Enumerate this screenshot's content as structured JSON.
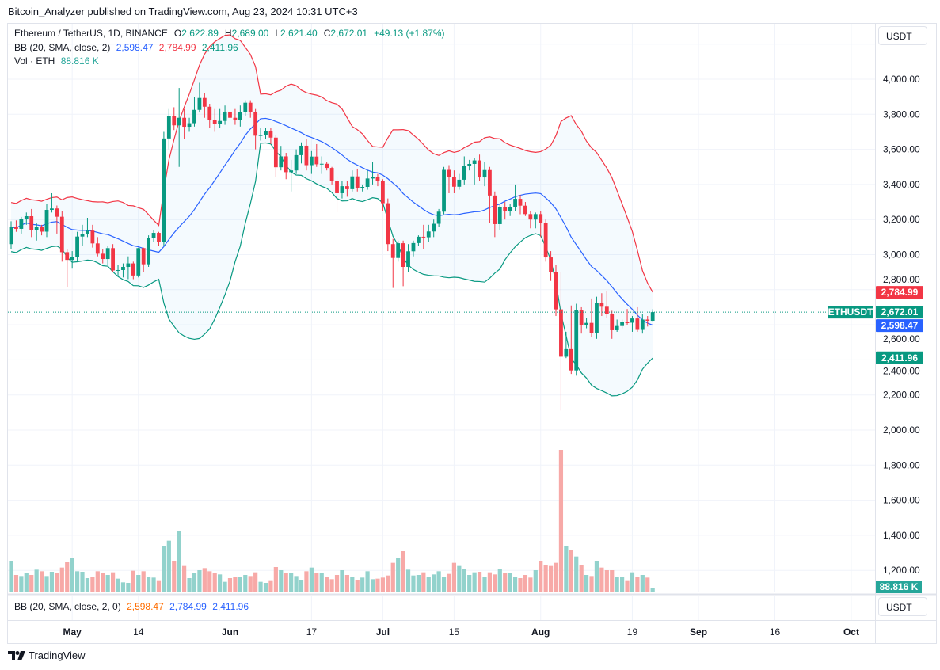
{
  "publisher_line": "Bitcoin_Analyzer published on TradingView.com, Aug 23, 2024 10:31 UTC+3",
  "legend": {
    "symbol": "Ethereum / TetherUS, 1D, BINANCE",
    "o_label": "O",
    "o": "2,622.89",
    "h_label": "H",
    "h": "2,689.00",
    "l_label": "L",
    "l": "2,621.40",
    "c_label": "C",
    "c": "2,672.01",
    "change": "+49.13 (+1.87%)",
    "bb_label": "BB (20, SMA, close, 2)",
    "bb_basis": "2,598.47",
    "bb_upper": "2,784.99",
    "bb_lower": "2,411.96",
    "vol_label": "Vol · ETH",
    "vol": "88.816 K"
  },
  "lower_pane": {
    "label": "BB (20, SMA, close, 2, 0)",
    "v1": "2,598.47",
    "v2": "2,784.99",
    "v3": "2,411.96",
    "unit_button": "USDT"
  },
  "price_axis": {
    "unit_button": "USDT",
    "ticks": [
      "1,200.00",
      "1,400.00",
      "1,600.00",
      "1,800.00",
      "2,000.00",
      "2,200.00",
      "2,400.00",
      "2,600.00",
      "2,800.00",
      "3,000.00",
      "3,200.00",
      "3,400.00",
      "3,600.00",
      "3,800.00",
      "4,000.00"
    ],
    "labels": {
      "upper": "2,784.99",
      "symbol": "ETHUSDT",
      "last": "2,672.01",
      "basis": "2,598.47",
      "lower": "2,411.96",
      "volume": "88.816 K"
    }
  },
  "colors": {
    "up": "#089981",
    "down": "#f23645",
    "basis": "#2962ff",
    "upper": "#f23645",
    "lower": "#089981",
    "vol_up": "#92d2cc",
    "vol_down": "#f7a9a7"
  },
  "footer_logo": "TradingView",
  "chart_data": {
    "type": "candlestick",
    "title": "Ethereum / TetherUS, 1D, BINANCE",
    "ylim": [
      1100,
      4150
    ],
    "y_scale": "linear",
    "grid": true,
    "legend_placement": "top-left",
    "indicators": [
      "Bollinger Bands (20, SMA, close, 2)",
      "Volume"
    ],
    "time_ticks": [
      {
        "label": "May",
        "date": "2024-05-01",
        "major": true
      },
      {
        "label": "14",
        "date": "2024-05-14",
        "major": false
      },
      {
        "label": "Jun",
        "date": "2024-06-01",
        "major": true
      },
      {
        "label": "17",
        "date": "2024-06-17",
        "major": false
      },
      {
        "label": "Jul",
        "date": "2024-07-01",
        "major": true
      },
      {
        "label": "15",
        "date": "2024-07-15",
        "major": false
      },
      {
        "label": "Aug",
        "date": "2024-08-01",
        "major": true
      },
      {
        "label": "19",
        "date": "2024-08-19",
        "major": false
      },
      {
        "label": "Sep",
        "date": "2024-09-01",
        "major": true
      },
      {
        "label": "16",
        "date": "2024-09-16",
        "major": false
      },
      {
        "label": "Oct",
        "date": "2024-10-01",
        "major": true
      }
    ],
    "columns": [
      "date",
      "open",
      "high",
      "low",
      "close",
      "volume_k"
    ],
    "candles": [
      [
        "2024-04-19",
        3060,
        3190,
        3030,
        3157,
        600
      ],
      [
        "2024-04-20",
        3157,
        3195,
        3130,
        3147,
        330
      ],
      [
        "2024-04-21",
        3147,
        3215,
        3120,
        3201,
        310
      ],
      [
        "2024-04-22",
        3201,
        3240,
        3170,
        3219,
        370
      ],
      [
        "2024-04-23",
        3219,
        3260,
        3100,
        3139,
        330
      ],
      [
        "2024-04-24",
        3139,
        3180,
        3080,
        3156,
        430
      ],
      [
        "2024-04-25",
        3156,
        3170,
        3110,
        3131,
        400
      ],
      [
        "2024-04-26",
        3131,
        3290,
        3100,
        3255,
        310
      ],
      [
        "2024-04-27",
        3255,
        3350,
        3240,
        3263,
        390
      ],
      [
        "2024-04-28",
        3263,
        3280,
        3120,
        3216,
        370
      ],
      [
        "2024-04-29",
        3216,
        3250,
        2960,
        3014,
        470
      ],
      [
        "2024-04-30",
        3014,
        3030,
        2817,
        2970,
        580
      ],
      [
        "2024-05-01",
        2970,
        3020,
        2920,
        2988,
        650
      ],
      [
        "2024-05-02",
        2988,
        3130,
        2960,
        3103,
        400
      ],
      [
        "2024-05-03",
        3103,
        3170,
        3050,
        3117,
        390
      ],
      [
        "2024-05-04",
        3117,
        3210,
        3100,
        3137,
        270
      ],
      [
        "2024-05-05",
        3137,
        3170,
        3040,
        3064,
        290
      ],
      [
        "2024-05-06",
        3064,
        3100,
        2990,
        3005,
        400
      ],
      [
        "2024-05-07",
        3005,
        3030,
        2950,
        2975,
        360
      ],
      [
        "2024-05-08",
        2975,
        3050,
        2940,
        3037,
        330
      ],
      [
        "2024-05-09",
        3037,
        3060,
        2900,
        2910,
        380
      ],
      [
        "2024-05-10",
        2910,
        2940,
        2880,
        2912,
        260
      ],
      [
        "2024-05-11",
        2912,
        2950,
        2870,
        2930,
        190
      ],
      [
        "2024-05-12",
        2930,
        2990,
        2860,
        2950,
        180
      ],
      [
        "2024-05-13",
        2950,
        2960,
        2860,
        2881,
        410
      ],
      [
        "2024-05-14",
        2881,
        3040,
        2870,
        3037,
        330
      ],
      [
        "2024-05-15",
        3037,
        3040,
        2900,
        2945,
        400
      ],
      [
        "2024-05-16",
        2945,
        3110,
        2930,
        3093,
        300
      ],
      [
        "2024-05-17",
        3093,
        3140,
        3070,
        3124,
        280
      ],
      [
        "2024-05-18",
        3124,
        3130,
        3050,
        3071,
        230
      ],
      [
        "2024-05-19",
        3071,
        3700,
        3050,
        3662,
        870
      ],
      [
        "2024-05-20",
        3662,
        3830,
        3600,
        3789,
        980
      ],
      [
        "2024-05-21",
        3789,
        3840,
        3710,
        3737,
        600
      ],
      [
        "2024-05-22",
        3737,
        3950,
        3500,
        3780,
        1160
      ],
      [
        "2024-05-23",
        3780,
        3830,
        3660,
        3729,
        500
      ],
      [
        "2024-05-24",
        3729,
        3780,
        3700,
        3749,
        270
      ],
      [
        "2024-05-25",
        3749,
        3900,
        3730,
        3825,
        370
      ],
      [
        "2024-05-26",
        3825,
        3980,
        3810,
        3893,
        420
      ],
      [
        "2024-05-27",
        3893,
        3920,
        3780,
        3843,
        460
      ],
      [
        "2024-05-28",
        3843,
        3860,
        3720,
        3767,
        400
      ],
      [
        "2024-05-29",
        3767,
        3830,
        3700,
        3747,
        360
      ],
      [
        "2024-05-30",
        3747,
        3830,
        3720,
        3762,
        340
      ],
      [
        "2024-05-31",
        3762,
        3850,
        3740,
        3815,
        200
      ],
      [
        "2024-06-01",
        3815,
        3840,
        3770,
        3780,
        270
      ],
      [
        "2024-06-02",
        3780,
        3830,
        3740,
        3767,
        300
      ],
      [
        "2024-06-03",
        3767,
        3850,
        3730,
        3811,
        300
      ],
      [
        "2024-06-04",
        3811,
        3880,
        3790,
        3866,
        330
      ],
      [
        "2024-06-05",
        3866,
        3880,
        3780,
        3812,
        310
      ],
      [
        "2024-06-06",
        3812,
        3830,
        3600,
        3678,
        380
      ],
      [
        "2024-06-07",
        3678,
        3720,
        3650,
        3681,
        200
      ],
      [
        "2024-06-08",
        3681,
        3720,
        3660,
        3706,
        180
      ],
      [
        "2024-06-09",
        3706,
        3720,
        3630,
        3667,
        230
      ],
      [
        "2024-06-10",
        3667,
        3680,
        3440,
        3498,
        480
      ],
      [
        "2024-06-11",
        3498,
        3620,
        3480,
        3560,
        420
      ],
      [
        "2024-06-12",
        3560,
        3580,
        3430,
        3470,
        360
      ],
      [
        "2024-06-13",
        3470,
        3540,
        3360,
        3480,
        370
      ],
      [
        "2024-06-14",
        3480,
        3600,
        3460,
        3567,
        310
      ],
      [
        "2024-06-15",
        3567,
        3640,
        3520,
        3621,
        240
      ],
      [
        "2024-06-16",
        3621,
        3660,
        3480,
        3510,
        400
      ],
      [
        "2024-06-17",
        3510,
        3590,
        3460,
        3559,
        470
      ],
      [
        "2024-06-18",
        3559,
        3630,
        3500,
        3515,
        360
      ],
      [
        "2024-06-19",
        3515,
        3560,
        3460,
        3518,
        360
      ],
      [
        "2024-06-20",
        3518,
        3530,
        3480,
        3494,
        300
      ],
      [
        "2024-06-21",
        3494,
        3500,
        3400,
        3418,
        250
      ],
      [
        "2024-06-22",
        3418,
        3440,
        3240,
        3350,
        330
      ],
      [
        "2024-06-23",
        3350,
        3420,
        3320,
        3390,
        420
      ],
      [
        "2024-06-24",
        3390,
        3420,
        3330,
        3373,
        330
      ],
      [
        "2024-06-25",
        3373,
        3480,
        3360,
        3446,
        300
      ],
      [
        "2024-06-26",
        3446,
        3490,
        3360,
        3378,
        240
      ],
      [
        "2024-06-27",
        3378,
        3400,
        3360,
        3386,
        280
      ],
      [
        "2024-06-28",
        3386,
        3480,
        3370,
        3434,
        400
      ],
      [
        "2024-06-29",
        3434,
        3530,
        3400,
        3442,
        250
      ],
      [
        "2024-06-30",
        3442,
        3460,
        3390,
        3420,
        260
      ],
      [
        "2024-07-01",
        3420,
        3430,
        3250,
        3293,
        280
      ],
      [
        "2024-07-02",
        3293,
        3320,
        3020,
        3060,
        320
      ],
      [
        "2024-07-03",
        3060,
        3090,
        2810,
        2981,
        560
      ],
      [
        "2024-07-04",
        2981,
        3080,
        2960,
        3065,
        660
      ],
      [
        "2024-07-05",
        3065,
        3080,
        2820,
        2930,
        780
      ],
      [
        "2024-07-06",
        2930,
        3060,
        2900,
        3019,
        430
      ],
      [
        "2024-07-07",
        3019,
        3080,
        2990,
        3066,
        320
      ],
      [
        "2024-07-08",
        3066,
        3110,
        3050,
        3102,
        330
      ],
      [
        "2024-07-09",
        3102,
        3170,
        3030,
        3099,
        380
      ],
      [
        "2024-07-10",
        3099,
        3170,
        3070,
        3132,
        300
      ],
      [
        "2024-07-11",
        3132,
        3200,
        3100,
        3176,
        340
      ],
      [
        "2024-07-12",
        3176,
        3260,
        3160,
        3245,
        400
      ],
      [
        "2024-07-13",
        3245,
        3500,
        3230,
        3483,
        300
      ],
      [
        "2024-07-14",
        3483,
        3510,
        3350,
        3443,
        350
      ],
      [
        "2024-07-15",
        3443,
        3480,
        3350,
        3387,
        560
      ],
      [
        "2024-07-16",
        3387,
        3460,
        3370,
        3427,
        500
      ],
      [
        "2024-07-17",
        3427,
        3560,
        3400,
        3505,
        440
      ],
      [
        "2024-07-18",
        3505,
        3540,
        3480,
        3517,
        330
      ],
      [
        "2024-07-19",
        3517,
        3550,
        3400,
        3537,
        380
      ],
      [
        "2024-07-20",
        3537,
        3570,
        3420,
        3440,
        390
      ],
      [
        "2024-07-21",
        3440,
        3530,
        3390,
        3482,
        300
      ],
      [
        "2024-07-22",
        3482,
        3500,
        3180,
        3337,
        380
      ],
      [
        "2024-07-23",
        3337,
        3360,
        3100,
        3174,
        340
      ],
      [
        "2024-07-24",
        3174,
        3290,
        3140,
        3273,
        450
      ],
      [
        "2024-07-25",
        3273,
        3300,
        3200,
        3246,
        370
      ],
      [
        "2024-07-26",
        3246,
        3290,
        3220,
        3270,
        360
      ],
      [
        "2024-07-27",
        3270,
        3400,
        3250,
        3318,
        300
      ],
      [
        "2024-07-28",
        3318,
        3340,
        3230,
        3279,
        270
      ],
      [
        "2024-07-29",
        3279,
        3300,
        3220,
        3231,
        330
      ],
      [
        "2024-07-30",
        3231,
        3250,
        3150,
        3200,
        280
      ],
      [
        "2024-07-31",
        3200,
        3240,
        3150,
        3231,
        420
      ],
      [
        "2024-08-01",
        3231,
        3250,
        3100,
        3179,
        600
      ],
      [
        "2024-08-02",
        3179,
        3200,
        2960,
        2984,
        520
      ],
      [
        "2024-08-03",
        2984,
        3020,
        2850,
        2902,
        500
      ],
      [
        "2024-08-04",
        2902,
        2940,
        2650,
        2688,
        560
      ],
      [
        "2024-08-05",
        2688,
        2900,
        2111,
        2418,
        2700
      ],
      [
        "2024-08-06",
        2418,
        2560,
        2410,
        2461,
        870
      ],
      [
        "2024-08-07",
        2461,
        2710,
        2320,
        2340,
        800
      ],
      [
        "2024-08-08",
        2340,
        2720,
        2310,
        2682,
        680
      ],
      [
        "2024-08-09",
        2682,
        2700,
        2550,
        2598,
        520
      ],
      [
        "2024-08-10",
        2598,
        2640,
        2580,
        2611,
        330
      ],
      [
        "2024-08-11",
        2611,
        2750,
        2530,
        2555,
        310
      ],
      [
        "2024-08-12",
        2555,
        2760,
        2520,
        2723,
        600
      ],
      [
        "2024-08-13",
        2723,
        2780,
        2650,
        2703,
        470
      ],
      [
        "2024-08-14",
        2703,
        2790,
        2640,
        2663,
        420
      ],
      [
        "2024-08-15",
        2663,
        2680,
        2520,
        2569,
        420
      ],
      [
        "2024-08-16",
        2569,
        2630,
        2560,
        2593,
        300
      ],
      [
        "2024-08-17",
        2593,
        2630,
        2580,
        2614,
        300
      ],
      [
        "2024-08-18",
        2614,
        2690,
        2600,
        2612,
        230
      ],
      [
        "2024-08-19",
        2612,
        2650,
        2560,
        2636,
        380
      ],
      [
        "2024-08-20",
        2636,
        2700,
        2560,
        2571,
        300
      ],
      [
        "2024-08-21",
        2571,
        2660,
        2550,
        2630,
        330
      ],
      [
        "2024-08-22",
        2630,
        2650,
        2590,
        2623,
        280
      ],
      [
        "2024-08-23",
        2622.89,
        2689,
        2621.4,
        2672.01,
        88.816
      ]
    ]
  }
}
